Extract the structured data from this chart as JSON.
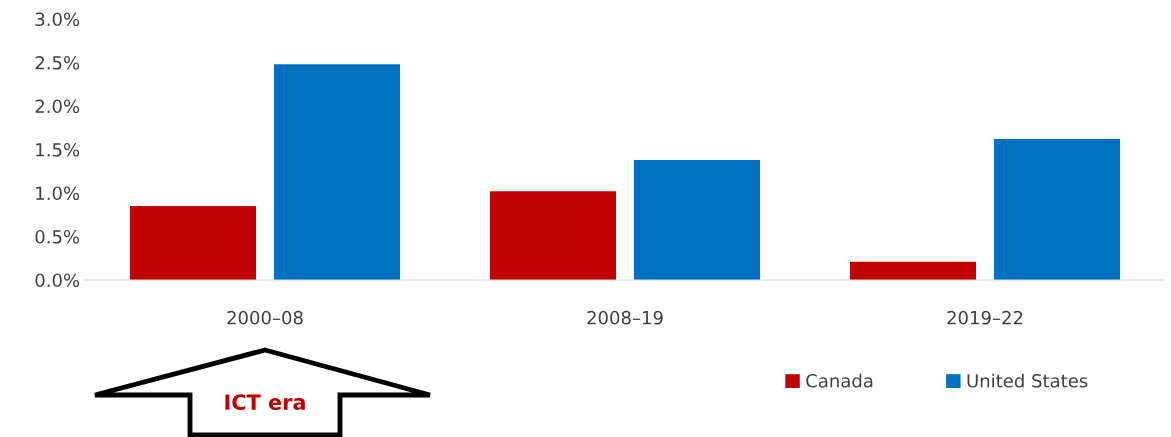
{
  "chart_data": {
    "type": "bar",
    "categories": [
      "2000–08",
      "2008–19",
      "2019–22"
    ],
    "series": [
      {
        "name": "Canada",
        "color": "#c00000",
        "values": [
          0.85,
          1.02,
          0.21
        ]
      },
      {
        "name": "United States",
        "color": "#0070c0",
        "values": [
          2.48,
          1.38,
          1.62
        ]
      }
    ],
    "ylim": [
      0,
      3.0
    ],
    "yticks": [
      {
        "value": 0,
        "label": "0.0%"
      },
      {
        "value": 0.5,
        "label": "0.5%"
      },
      {
        "value": 1.0,
        "label": "1.0%"
      },
      {
        "value": 1.5,
        "label": "1.5%"
      },
      {
        "value": 2.0,
        "label": "2.0%"
      },
      {
        "value": 2.5,
        "label": "2.5%"
      },
      {
        "value": 3.0,
        "label": "3.0%"
      }
    ],
    "grid": false,
    "legend": "bottom right",
    "annotations": [
      "ICT era"
    ]
  }
}
